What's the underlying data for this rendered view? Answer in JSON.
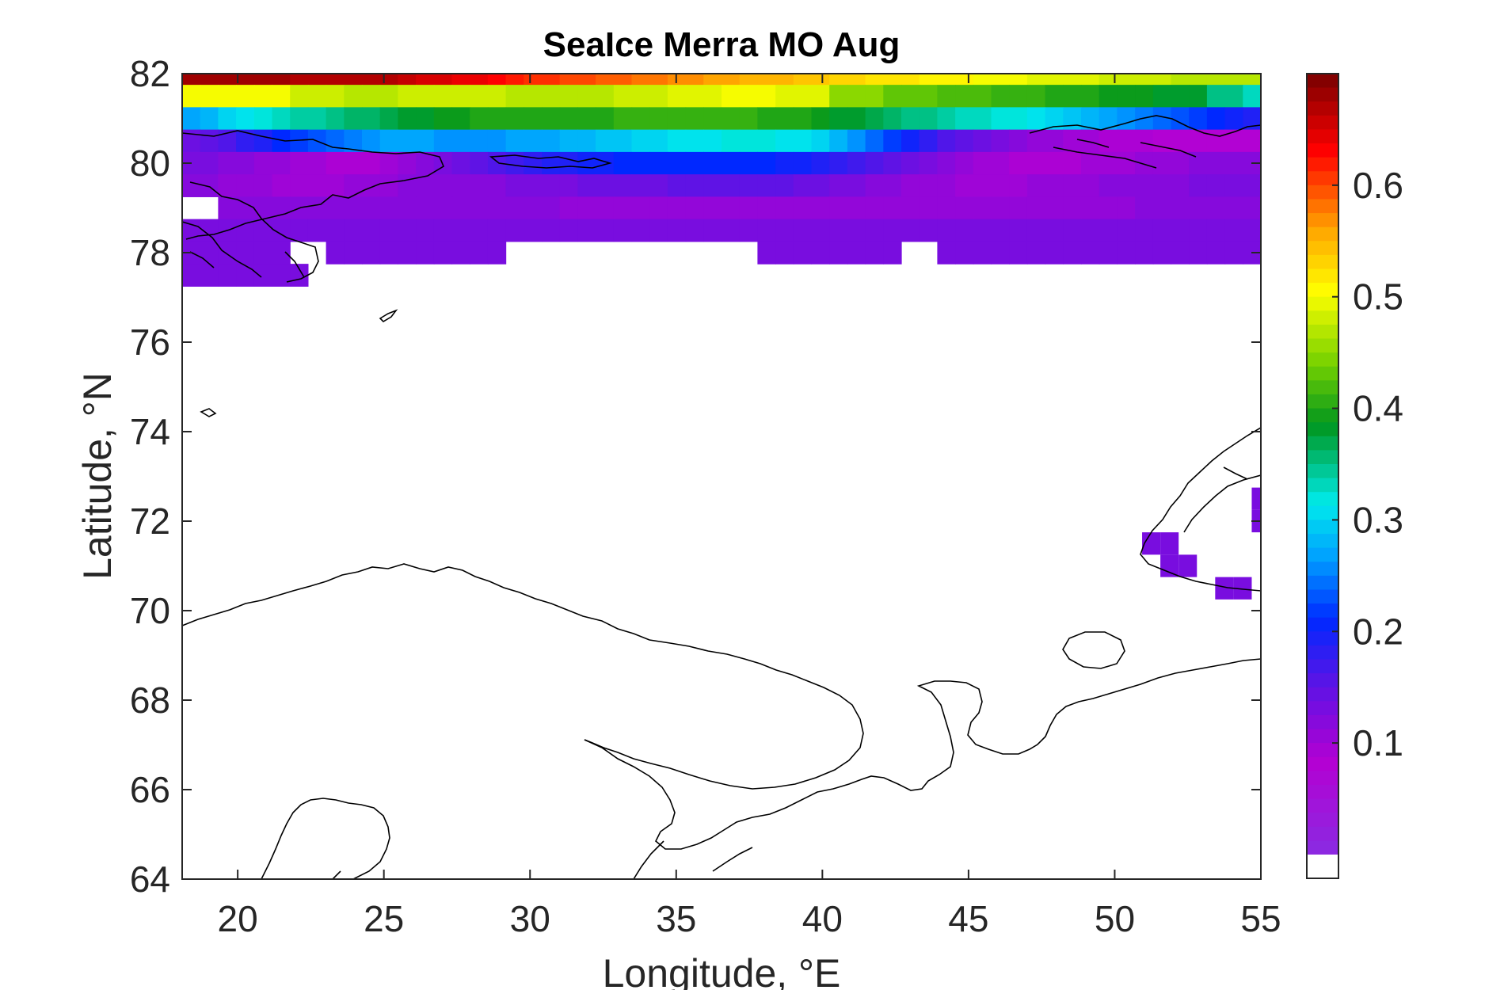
{
  "chart_data": {
    "type": "heatmap",
    "title": "SeaIce Merra MO Aug",
    "xlabel": "Longitude, °E",
    "ylabel": "Latitude, °N",
    "xlim": [
      18.1,
      55
    ],
    "ylim": [
      64,
      82
    ],
    "xticks": [
      20,
      25,
      30,
      35,
      40,
      45,
      50,
      55
    ],
    "yticks": [
      64,
      66,
      68,
      70,
      72,
      74,
      76,
      78,
      80,
      82
    ],
    "colorbar": {
      "colormap": "spectral-rainbow",
      "range": [
        0,
        0.7
      ],
      "ticks": [
        "0.1",
        "0.2",
        "0.3",
        "0.4",
        "0.5",
        "0.6"
      ],
      "tick_values": [
        0.1,
        0.2,
        0.3,
        0.4,
        0.5,
        0.6
      ],
      "nan_color": "#ffffff"
    },
    "grid": false,
    "colors": {
      "axes": "#262626",
      "title": "#000000",
      "coastline": "#000000"
    },
    "rows": [
      {
        "lat": 82.0,
        "values": [
          0.68,
          0.68,
          0.68,
          0.68,
          0.68,
          0.68,
          0.67,
          0.67,
          0.67,
          0.67,
          0.67,
          0.67,
          0.66,
          0.65,
          0.65,
          0.64,
          0.64,
          0.63,
          0.62,
          0.61,
          0.61,
          0.6,
          0.6,
          0.59,
          0.59,
          0.58,
          0.58,
          0.57,
          0.57,
          0.56,
          0.56,
          0.55,
          0.55,
          0.55,
          0.54,
          0.54,
          0.53,
          0.53,
          0.52,
          0.52,
          0.52,
          0.51,
          0.51,
          0.51,
          0.5,
          0.5,
          0.5,
          0.49,
          0.49,
          0.49,
          0.49,
          0.48,
          0.48,
          0.48,
          0.48,
          0.47,
          0.47,
          0.47,
          0.47,
          0.47
        ]
      },
      {
        "lat": 81.5,
        "values": [
          0.5,
          0.5,
          0.5,
          0.5,
          0.5,
          0.5,
          0.48,
          0.48,
          0.48,
          0.47,
          0.47,
          0.47,
          0.48,
          0.48,
          0.48,
          0.48,
          0.48,
          0.48,
          0.47,
          0.47,
          0.47,
          0.47,
          0.47,
          0.47,
          0.48,
          0.48,
          0.48,
          0.49,
          0.49,
          0.49,
          0.5,
          0.5,
          0.5,
          0.49,
          0.49,
          0.49,
          0.45,
          0.45,
          0.45,
          0.43,
          0.43,
          0.43,
          0.42,
          0.42,
          0.42,
          0.41,
          0.41,
          0.41,
          0.4,
          0.4,
          0.4,
          0.39,
          0.39,
          0.39,
          0.38,
          0.38,
          0.38,
          0.35,
          0.35,
          0.33
        ]
      },
      {
        "lat": 81.0,
        "values": [
          0.27,
          0.28,
          0.3,
          0.31,
          0.32,
          0.33,
          0.34,
          0.34,
          0.35,
          0.36,
          0.36,
          0.37,
          0.38,
          0.38,
          0.39,
          0.39,
          0.4,
          0.4,
          0.4,
          0.4,
          0.4,
          0.4,
          0.4,
          0.4,
          0.41,
          0.41,
          0.41,
          0.41,
          0.41,
          0.41,
          0.41,
          0.41,
          0.4,
          0.4,
          0.4,
          0.39,
          0.38,
          0.38,
          0.37,
          0.36,
          0.35,
          0.35,
          0.34,
          0.33,
          0.33,
          0.32,
          0.32,
          0.31,
          0.3,
          0.29,
          0.28,
          0.27,
          0.26,
          0.25,
          0.24,
          0.23,
          0.22,
          0.21,
          0.2,
          0.19
        ]
      },
      {
        "lat": 80.5,
        "values": [
          0.14,
          0.15,
          0.16,
          0.18,
          0.19,
          0.21,
          0.22,
          0.23,
          0.24,
          0.25,
          0.26,
          0.27,
          0.27,
          0.27,
          0.26,
          0.26,
          0.26,
          0.26,
          0.27,
          0.27,
          0.27,
          0.28,
          0.28,
          0.29,
          0.29,
          0.3,
          0.3,
          0.31,
          0.31,
          0.31,
          0.32,
          0.32,
          0.32,
          0.31,
          0.31,
          0.3,
          0.28,
          0.26,
          0.24,
          0.22,
          0.2,
          0.18,
          0.16,
          0.15,
          0.14,
          0.13,
          0.12,
          0.11,
          0.11,
          0.1,
          0.1,
          0.09,
          0.09,
          0.09,
          0.08,
          0.08,
          0.08,
          0.08,
          0.08,
          0.08
        ]
      },
      {
        "lat": 80.0,
        "values": [
          0.13,
          0.13,
          0.12,
          0.12,
          0.11,
          0.11,
          0.1,
          0.1,
          0.09,
          0.09,
          0.09,
          0.1,
          0.11,
          0.12,
          0.13,
          0.14,
          0.15,
          0.16,
          0.17,
          0.18,
          0.19,
          0.19,
          0.2,
          0.2,
          0.21,
          0.21,
          0.21,
          0.21,
          0.21,
          0.21,
          0.21,
          0.21,
          0.21,
          0.2,
          0.2,
          0.19,
          0.18,
          0.17,
          0.16,
          0.15,
          0.14,
          0.13,
          0.12,
          0.11,
          0.1,
          0.1,
          0.09,
          0.09,
          0.09,
          0.09,
          0.1,
          0.1,
          0.1,
          0.11,
          0.11,
          0.11,
          0.12,
          0.12,
          0.12,
          0.12
        ]
      },
      {
        "lat": 79.5,
        "values": [
          0.12,
          0.12,
          0.11,
          0.11,
          0.11,
          0.1,
          0.1,
          0.1,
          0.1,
          0.11,
          0.11,
          0.11,
          0.12,
          0.12,
          0.12,
          0.12,
          0.12,
          0.12,
          0.13,
          0.13,
          0.13,
          0.13,
          0.14,
          0.14,
          0.14,
          0.14,
          0.14,
          0.15,
          0.15,
          0.15,
          0.15,
          0.15,
          0.15,
          0.15,
          0.14,
          0.14,
          0.13,
          0.13,
          0.12,
          0.12,
          0.11,
          0.11,
          0.11,
          0.1,
          0.1,
          0.1,
          0.1,
          0.11,
          0.11,
          0.11,
          0.11,
          0.12,
          0.12,
          0.12,
          0.12,
          0.12,
          0.13,
          0.13,
          0.13,
          0.13
        ]
      },
      {
        "lat": 79.0,
        "values": [
          null,
          null,
          0.12,
          0.12,
          0.12,
          0.12,
          0.12,
          0.12,
          0.12,
          0.12,
          0.12,
          0.12,
          0.12,
          0.12,
          0.12,
          0.12,
          0.12,
          0.12,
          0.12,
          0.12,
          0.12,
          0.11,
          0.11,
          0.11,
          0.11,
          0.11,
          0.11,
          0.11,
          0.11,
          0.11,
          0.11,
          0.11,
          0.11,
          0.11,
          0.11,
          0.11,
          0.11,
          0.11,
          0.11,
          0.11,
          0.11,
          0.11,
          0.11,
          0.11,
          0.11,
          0.11,
          0.11,
          0.11,
          0.11,
          0.11,
          0.11,
          0.11,
          0.11,
          0.12,
          0.12,
          0.12,
          0.12,
          0.12,
          0.12,
          0.12
        ]
      },
      {
        "lat": 78.5,
        "values": [
          0.13,
          0.13,
          0.13,
          0.13,
          0.13,
          0.13,
          0.13,
          0.13,
          0.13,
          0.13,
          0.13,
          0.13,
          0.13,
          0.13,
          0.13,
          0.13,
          0.13,
          0.13,
          0.13,
          0.13,
          0.13,
          0.13,
          0.13,
          0.13,
          0.13,
          0.13,
          0.13,
          0.13,
          0.13,
          0.13,
          0.13,
          0.13,
          0.13,
          0.13,
          0.13,
          0.13,
          0.13,
          0.13,
          0.13,
          0.13,
          0.13,
          0.13,
          0.13,
          0.13,
          0.13,
          0.13,
          0.13,
          0.13,
          0.13,
          0.13,
          0.13,
          0.13,
          0.13,
          0.13,
          0.13,
          0.13,
          0.13,
          0.13,
          0.13,
          0.13
        ]
      },
      {
        "lat": 78.0,
        "values": [
          0.13,
          0.13,
          0.13,
          0.13,
          0.13,
          0.13,
          null,
          null,
          0.13,
          0.13,
          0.13,
          0.13,
          0.13,
          0.13,
          0.13,
          0.13,
          0.13,
          0.13,
          null,
          null,
          null,
          null,
          null,
          null,
          null,
          null,
          null,
          null,
          null,
          null,
          null,
          null,
          0.13,
          0.13,
          0.13,
          0.13,
          0.13,
          0.13,
          0.13,
          0.13,
          null,
          null,
          0.13,
          0.13,
          0.13,
          0.13,
          0.13,
          0.13,
          0.13,
          0.13,
          0.13,
          0.13,
          0.13,
          0.13,
          0.13,
          0.13,
          0.13,
          0.13,
          0.13,
          0.13
        ]
      },
      {
        "lat": 77.5,
        "values": [
          0.13,
          0.13,
          0.13,
          0.13,
          0.13,
          0.13,
          0.13,
          null,
          null,
          null,
          null,
          null,
          null,
          null,
          null,
          null,
          null,
          null,
          null,
          null,
          null,
          null,
          null,
          null,
          null,
          null,
          null,
          null,
          null,
          null,
          null,
          null,
          null,
          null,
          null,
          null,
          null,
          null,
          null,
          null,
          null,
          null,
          null,
          null,
          null,
          null,
          null,
          null,
          null,
          null,
          null,
          null,
          null,
          null,
          null,
          null,
          null,
          null,
          null,
          null
        ]
      }
    ],
    "extra_cells": [
      {
        "lon": 51.25,
        "lat": 71.5,
        "value": 0.13
      },
      {
        "lon": 51.875,
        "lat": 71.5,
        "value": 0.13
      },
      {
        "lon": 51.875,
        "lat": 71.0,
        "value": 0.13
      },
      {
        "lon": 52.5,
        "lat": 71.0,
        "value": 0.13
      },
      {
        "lon": 53.75,
        "lat": 70.5,
        "value": 0.13
      },
      {
        "lon": 54.375,
        "lat": 70.5,
        "value": 0.13
      },
      {
        "lon": 55.0,
        "lat": 72.5,
        "value": 0.13
      },
      {
        "lon": 55.0,
        "lat": 72.0,
        "value": 0.13
      }
    ]
  }
}
